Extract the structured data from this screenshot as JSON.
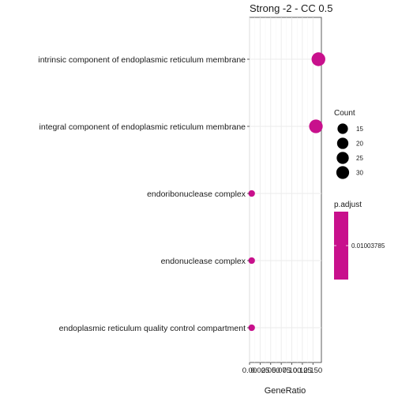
{
  "chart_data": {
    "type": "scatter",
    "title": "Strong -2 - CC 0.5",
    "xlabel": "GeneRatio",
    "ylabel": "",
    "xlim": [
      0.0,
      0.17
    ],
    "x_tick_labels": [
      {
        "value": 0.0,
        "label": "0.00"
      },
      {
        "value": 0.025,
        "label": "0.025"
      },
      {
        "value": 0.05,
        "label": "0.050"
      },
      {
        "value": 0.075,
        "label": "0.075"
      },
      {
        "value": 0.1,
        "label": "0.100"
      },
      {
        "value": 0.125,
        "label": "0.125"
      },
      {
        "value": 0.15,
        "label": "0.150"
      }
    ],
    "categories": [
      "intrinsic component of endoplasmic reticulum membrane",
      "integral component of endoplasmic reticulum membrane",
      "endoribonuclease complex",
      "endonuclease complex",
      "endoplasmic reticulum quality control compartment"
    ],
    "points": [
      {
        "term": "intrinsic component of endoplasmic reticulum membrane",
        "gene_ratio": 0.163,
        "count": 32,
        "p_adjust": 0.01003785
      },
      {
        "term": "integral component of endoplasmic reticulum membrane",
        "gene_ratio": 0.157,
        "count": 31,
        "p_adjust": 0.01003785
      },
      {
        "term": "endoribonuclease complex",
        "gene_ratio": 0.005,
        "count": 1,
        "p_adjust": 0.01003785
      },
      {
        "term": "endonuclease complex",
        "gene_ratio": 0.005,
        "count": 1,
        "p_adjust": 0.01003785
      },
      {
        "term": "endoplasmic reticulum quality control compartment",
        "gene_ratio": 0.005,
        "count": 1,
        "p_adjust": 0.01003785
      }
    ],
    "grid": true,
    "legend_placement": "right",
    "size_legend": {
      "title": "Count",
      "entries": [
        {
          "label": "15",
          "value": 15
        },
        {
          "label": "20",
          "value": 20
        },
        {
          "label": "25",
          "value": 25
        },
        {
          "label": "30",
          "value": 30
        }
      ]
    },
    "color_legend": {
      "title": "p.adjust",
      "tick_label": "0.01003785",
      "color": "#c8108c"
    },
    "point_color": "#c8108c",
    "legend_key_color": "#000000"
  }
}
